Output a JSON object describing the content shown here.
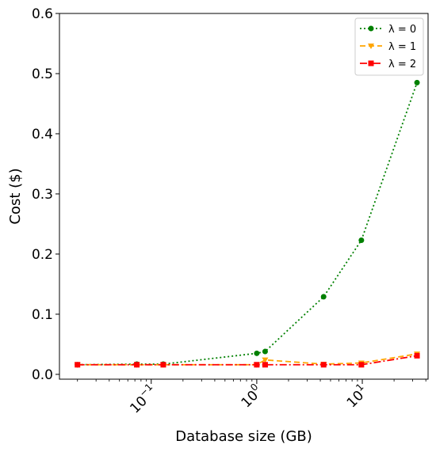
{
  "chart_data": {
    "type": "line",
    "xscale": "log",
    "x": [
      0.02,
      0.073,
      0.13,
      1.0,
      1.2,
      4.3,
      9.8,
      33.0
    ],
    "xlim": [
      0.0135,
      42.0
    ],
    "ylim": [
      -0.008,
      0.6
    ],
    "xticks": [
      {
        "value": 0.1,
        "base": "10",
        "exp": "−1"
      },
      {
        "value": 1,
        "base": "10",
        "exp": "0"
      },
      {
        "value": 10,
        "base": "10",
        "exp": "1"
      }
    ],
    "yticks": [
      "0.0",
      "0.1",
      "0.2",
      "0.3",
      "0.4",
      "0.5",
      "0.6"
    ],
    "xlabel": "Database size (GB)",
    "ylabel": "Cost ($)",
    "legend_position": "top-right",
    "grid": false,
    "series": [
      {
        "name": "λ = 0",
        "color": "#008000",
        "style": "dotted",
        "marker": "circle",
        "values": [
          0.016,
          0.017,
          0.017,
          0.035,
          0.038,
          0.129,
          0.223,
          0.485
        ]
      },
      {
        "name": "λ = 1",
        "color": "#ffa500",
        "style": "dashed",
        "marker": "triangle-down",
        "values": [
          0.016,
          0.016,
          0.016,
          0.016,
          0.024,
          0.017,
          0.019,
          0.034
        ]
      },
      {
        "name": "λ = 2",
        "color": "#ff0000",
        "style": "dashdot",
        "marker": "square",
        "values": [
          0.016,
          0.016,
          0.016,
          0.016,
          0.016,
          0.016,
          0.016,
          0.031
        ]
      }
    ]
  }
}
